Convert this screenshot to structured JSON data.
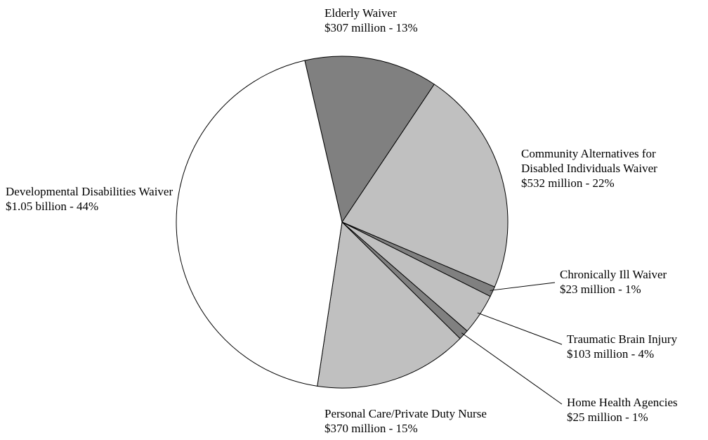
{
  "chart_data": {
    "type": "pie",
    "categories": [
      "Elderly Waiver",
      "Community Alternatives for Disabled Individuals Waiver",
      "Chronically Ill Waiver",
      "Traumatic Brain Injury",
      "Home Health Agencies",
      "Personal Care/Private Duty Nurse",
      "Developmental Disabilities Waiver"
    ],
    "values": [
      13,
      22,
      1,
      4,
      1,
      15,
      44
    ],
    "value_labels": [
      "$307 million - 13%",
      "$532 million - 22%",
      "$23 million - 1%",
      "$103 million - 4%",
      "$25 million - 1%",
      "$370 million - 15%",
      "$1.05 billion - 44%"
    ],
    "colors": [
      "#808080",
      "#c0c0c0",
      "#808080",
      "#c0c0c0",
      "#808080",
      "#c0c0c0",
      "#ffffff"
    ]
  }
}
